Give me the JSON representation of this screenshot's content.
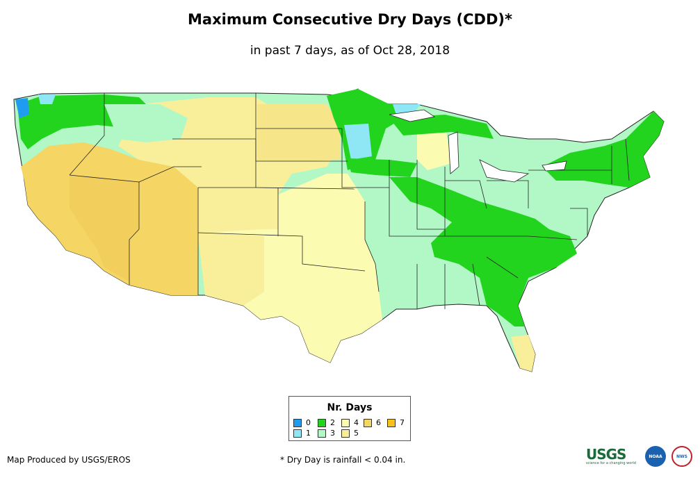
{
  "title": "Maximum Consecutive Dry Days (CDD)*",
  "subtitle": "in past 7 days, as of Oct 28, 2018",
  "legend": {
    "title": "Nr. Days",
    "items": [
      {
        "label": "0",
        "color": "#1f9cf0"
      },
      {
        "label": "1",
        "color": "#8fe6f5"
      },
      {
        "label": "2",
        "color": "#22d41e"
      },
      {
        "label": "3",
        "color": "#b2f7c6"
      },
      {
        "label": "4",
        "color": "#fbfbb2"
      },
      {
        "label": "5",
        "color": "#f9ef9a"
      },
      {
        "label": "6",
        "color": "#f5d664"
      },
      {
        "label": "7",
        "color": "#f7c21a"
      }
    ]
  },
  "credit": "Map Produced by USGS/EROS",
  "footnote": "* Dry Day is rainfall < 0.04 in.",
  "logos": {
    "usgs": "USGS",
    "usgs_tagline": "science for a changing world",
    "noaa": "NOAA",
    "nws": "NWS"
  }
}
